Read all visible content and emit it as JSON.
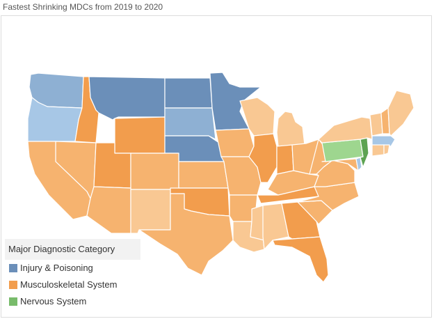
{
  "title": "Fastest Shrinking MDCs from 2019 to 2020",
  "legend": {
    "title": "Major Diagnostic Category",
    "items": [
      {
        "label": "Injury & Poisoning",
        "color": "#6b8fb9"
      },
      {
        "label": "Musculoskeletal System",
        "color": "#f29d4d"
      },
      {
        "label": "Nervous System",
        "color": "#78bb6b"
      }
    ]
  },
  "colors": {
    "injury_dark": "#6b8fb9",
    "injury_mid": "#8eb0d3",
    "injury_light": "#a7c7e6",
    "musculo_dark": "#f29d4d",
    "musculo_mid": "#f6b36f",
    "musculo_light": "#f9c893",
    "nervous_dark": "#5da352",
    "nervous_light": "#9ed68f"
  },
  "map_data": {
    "type": "choropleth",
    "region": "United States",
    "states": [
      {
        "state": "WA",
        "category": "Injury & Poisoning"
      },
      {
        "state": "OR",
        "category": "Injury & Poisoning"
      },
      {
        "state": "MT",
        "category": "Injury & Poisoning"
      },
      {
        "state": "ND",
        "category": "Injury & Poisoning"
      },
      {
        "state": "SD",
        "category": "Injury & Poisoning"
      },
      {
        "state": "NE",
        "category": "Injury & Poisoning"
      },
      {
        "state": "MN",
        "category": "Injury & Poisoning"
      },
      {
        "state": "MA",
        "category": "Injury & Poisoning"
      },
      {
        "state": "DE",
        "category": "Injury & Poisoning"
      },
      {
        "state": "PA",
        "category": "Nervous System"
      },
      {
        "state": "NJ",
        "category": "Nervous System"
      },
      {
        "state": "ID",
        "category": "Musculoskeletal System"
      },
      {
        "state": "WY",
        "category": "Musculoskeletal System"
      },
      {
        "state": "CA",
        "category": "Musculoskeletal System"
      },
      {
        "state": "NV",
        "category": "Musculoskeletal System"
      },
      {
        "state": "UT",
        "category": "Musculoskeletal System"
      },
      {
        "state": "CO",
        "category": "Musculoskeletal System"
      },
      {
        "state": "AZ",
        "category": "Musculoskeletal System"
      },
      {
        "state": "NM",
        "category": "Musculoskeletal System"
      },
      {
        "state": "KS",
        "category": "Musculoskeletal System"
      },
      {
        "state": "OK",
        "category": "Musculoskeletal System"
      },
      {
        "state": "TX",
        "category": "Musculoskeletal System"
      },
      {
        "state": "IA",
        "category": "Musculoskeletal System"
      },
      {
        "state": "MO",
        "category": "Musculoskeletal System"
      },
      {
        "state": "AR",
        "category": "Musculoskeletal System"
      },
      {
        "state": "LA",
        "category": "Musculoskeletal System"
      },
      {
        "state": "WI",
        "category": "Musculoskeletal System"
      },
      {
        "state": "IL",
        "category": "Musculoskeletal System"
      },
      {
        "state": "MI",
        "category": "Musculoskeletal System"
      },
      {
        "state": "IN",
        "category": "Musculoskeletal System"
      },
      {
        "state": "OH",
        "category": "Musculoskeletal System"
      },
      {
        "state": "KY",
        "category": "Musculoskeletal System"
      },
      {
        "state": "TN",
        "category": "Musculoskeletal System"
      },
      {
        "state": "MS",
        "category": "Musculoskeletal System"
      },
      {
        "state": "AL",
        "category": "Musculoskeletal System"
      },
      {
        "state": "GA",
        "category": "Musculoskeletal System"
      },
      {
        "state": "FL",
        "category": "Musculoskeletal System"
      },
      {
        "state": "SC",
        "category": "Musculoskeletal System"
      },
      {
        "state": "NC",
        "category": "Musculoskeletal System"
      },
      {
        "state": "VA",
        "category": "Musculoskeletal System"
      },
      {
        "state": "WV",
        "category": "Musculoskeletal System"
      },
      {
        "state": "MD",
        "category": "Musculoskeletal System"
      },
      {
        "state": "NY",
        "category": "Musculoskeletal System"
      },
      {
        "state": "VT",
        "category": "Musculoskeletal System"
      },
      {
        "state": "NH",
        "category": "Musculoskeletal System"
      },
      {
        "state": "ME",
        "category": "Musculoskeletal System"
      },
      {
        "state": "CT",
        "category": "Musculoskeletal System"
      },
      {
        "state": "RI",
        "category": "Musculoskeletal System"
      }
    ]
  }
}
